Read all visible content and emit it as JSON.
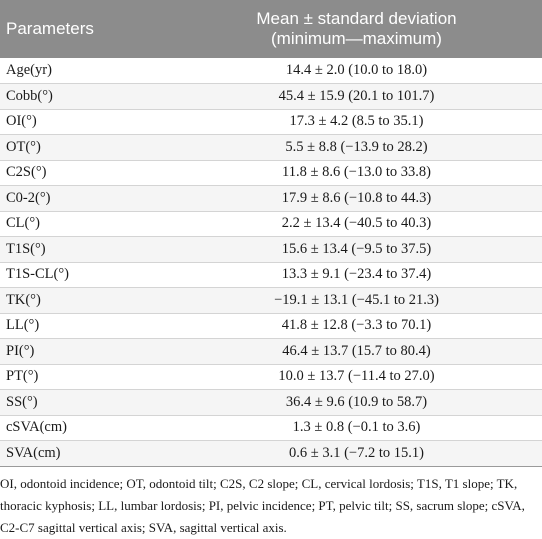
{
  "table": {
    "header": {
      "param": "Parameters",
      "stat_line1": "Mean ± standard deviation",
      "stat_line2": "(minimum—maximum)"
    },
    "rows": [
      {
        "param": "Age(yr)",
        "stat": "14.4 ± 2.0 (10.0 to 18.0)"
      },
      {
        "param": "Cobb(°)",
        "stat": "45.4 ± 15.9 (20.1 to 101.7)"
      },
      {
        "param": "OI(°)",
        "stat": "17.3 ± 4.2 (8.5 to 35.1)"
      },
      {
        "param": "OT(°)",
        "stat": "5.5 ± 8.8 (−13.9 to 28.2)"
      },
      {
        "param": "C2S(°)",
        "stat": "11.8 ± 8.6 (−13.0 to 33.8)"
      },
      {
        "param": "C0-2(°)",
        "stat": "17.9 ± 8.6 (−10.8 to 44.3)"
      },
      {
        "param": "CL(°)",
        "stat": "2.2 ± 13.4 (−40.5 to 40.3)"
      },
      {
        "param": "T1S(°)",
        "stat": "15.6 ± 13.4 (−9.5 to 37.5)"
      },
      {
        "param": "T1S-CL(°)",
        "stat": "13.3 ± 9.1 (−23.4 to 37.4)"
      },
      {
        "param": "TK(°)",
        "stat": "−19.1 ± 13.1 (−45.1 to 21.3)"
      },
      {
        "param": "LL(°)",
        "stat": "41.8 ± 12.8 (−3.3 to 70.1)"
      },
      {
        "param": "PI(°)",
        "stat": "46.4 ± 13.7 (15.7 to 80.4)"
      },
      {
        "param": "PT(°)",
        "stat": "10.0 ± 13.7 (−11.4 to 27.0)"
      },
      {
        "param": "SS(°)",
        "stat": "36.4 ± 9.6 (10.9 to 58.7)"
      },
      {
        "param": "cSVA(cm)",
        "stat": "1.3 ± 0.8 (−0.1 to 3.6)"
      },
      {
        "param": "SVA(cm)",
        "stat": "0.6 ± 3.1 (−7.2 to 15.1)"
      }
    ]
  },
  "footnote": "OI, odontoid incidence; OT, odontoid tilt; C2S, C2 slope; CL, cervical lordosis; T1S, T1 slope; TK, thoracic kyphosis; LL, lumbar lordosis; PI, pelvic incidence; PT, pelvic tilt; SS, sacrum slope; cSVA, C2-C7 sagittal vertical axis; SVA, sagittal vertical axis."
}
